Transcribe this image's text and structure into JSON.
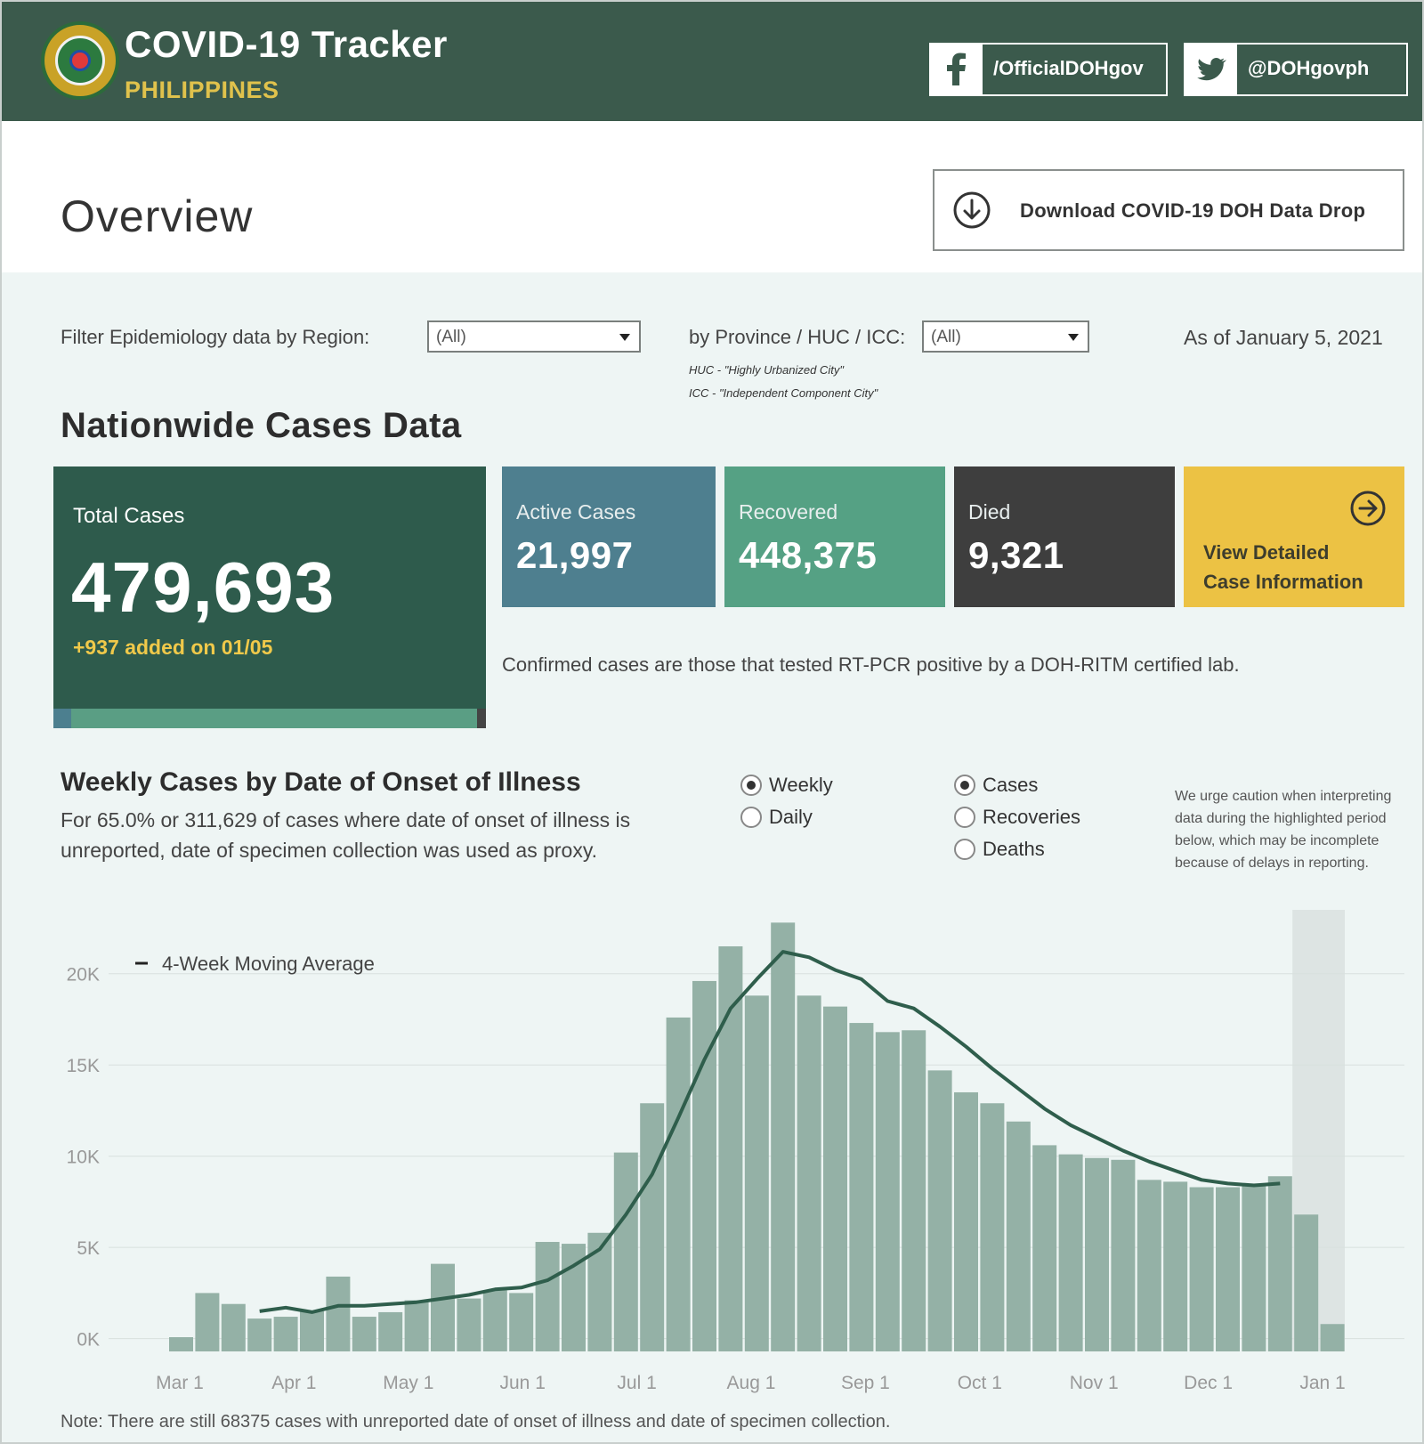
{
  "header": {
    "title": "COVID-19 Tracker",
    "subtitle": "PHILIPPINES",
    "facebook_label": "/OfficialDOHgov",
    "twitter_label": "@DOHgovph"
  },
  "overview": {
    "title": "Overview",
    "download_label": "Download COVID-19 DOH Data Drop"
  },
  "filters": {
    "region_label": "Filter Epidemiology data by Region:",
    "region_value": "(All)",
    "province_label": "by Province / HUC / ICC:",
    "province_value": "(All)",
    "huc_note": "HUC - \"Highly Urbanized City\"",
    "icc_note": "ICC - \"Independent Component City\"",
    "as_of": "As of January 5, 2021"
  },
  "nationwide": {
    "title": "Nationwide Cases Data",
    "total_label": "Total Cases",
    "total_value": "479,693",
    "added": "+937 added on 01/05",
    "active_label": "Active Cases",
    "active_value": "21,997",
    "recovered_label": "Recovered",
    "recovered_value": "448,375",
    "died_label": "Died",
    "died_value": "9,321",
    "detail_line1": "View Detailed",
    "detail_line2": "Case Information",
    "confirmed_note": "Confirmed cases are those that tested RT-PCR positive by a DOH-RITM certified lab."
  },
  "weekly": {
    "title": "Weekly Cases by Date of Onset of Illness",
    "desc": "For 65.0% or 311,629 of cases where date of onset of illness is unreported, date of specimen collection was used as proxy.",
    "period_options": [
      "Weekly",
      "Daily"
    ],
    "period_selected": "Weekly",
    "measure_options": [
      "Cases",
      "Recoveries",
      "Deaths"
    ],
    "measure_selected": "Cases",
    "caution": "We urge caution when interpreting data during the highlighted period below, which may be incomplete because of delays in reporting.",
    "footnote": "Note: There are still 68375 cases with unreported date of onset of illness and date of specimen collection."
  },
  "colors": {
    "header_bg": "#3b5a4c",
    "accent_yellow": "#ecc244",
    "active": "#4e7f8f",
    "recovered": "#55a184",
    "died": "#3e3e3e",
    "bar": "#94b1a6",
    "line": "#2f5e4c"
  },
  "chart_data": {
    "type": "bar",
    "legend": "4-Week Moving Average",
    "y_ticks": [
      "20K",
      "15K",
      "10K",
      "5K",
      "0K"
    ],
    "ylim": [
      -700,
      23500
    ],
    "x_tick_labels": [
      "Mar 1",
      "Apr 1",
      "May 1",
      "Jun 1",
      "Jul 1",
      "Aug 1",
      "Sep 1",
      "Oct 1",
      "Nov 1",
      "Dec 1",
      "Jan 1"
    ],
    "highlighted_period": "last 2 weeks",
    "values": [
      80,
      2500,
      1900,
      1100,
      1200,
      1500,
      3400,
      1200,
      1450,
      2100,
      4100,
      2200,
      2650,
      2500,
      5300,
      5200,
      5800,
      10200,
      12900,
      17600,
      19600,
      21500,
      18800,
      22800,
      18800,
      18200,
      17300,
      16800,
      16900,
      14700,
      13500,
      12900,
      11900,
      10600,
      10100,
      9900,
      9800,
      8700,
      8600,
      8300,
      8300,
      8500,
      8900,
      6800,
      800
    ],
    "moving_average": [
      null,
      null,
      null,
      1500,
      1700,
      1450,
      1800,
      1800,
      1900,
      2000,
      2200,
      2400,
      2700,
      2800,
      3200,
      4000,
      4900,
      6800,
      9000,
      12100,
      15300,
      18100,
      19700,
      21200,
      20900,
      20200,
      19700,
      18500,
      18100,
      17100,
      16000,
      14800,
      13700,
      12600,
      11700,
      11000,
      10300,
      9700,
      9200,
      8700,
      8500,
      8400,
      8500,
      null,
      null
    ]
  }
}
